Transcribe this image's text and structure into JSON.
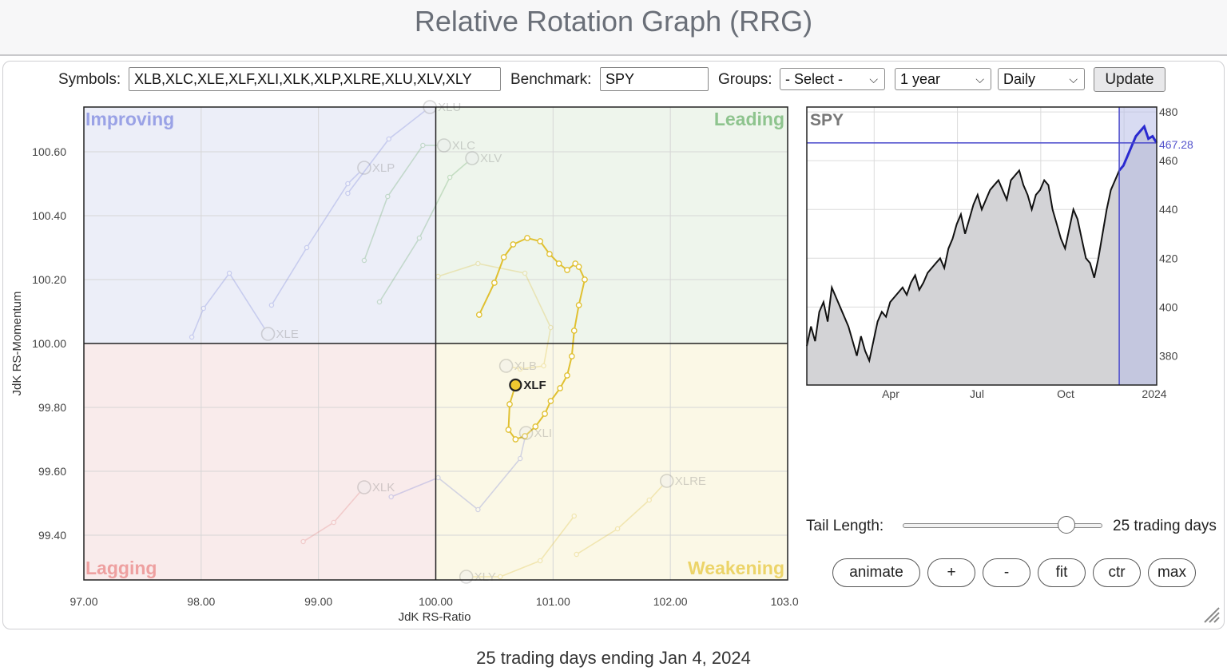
{
  "header": {
    "title": "Relative Rotation Graph (RRG)"
  },
  "controls": {
    "symbols_label": "Symbols:",
    "symbols_value": "XLB,XLC,XLE,XLF,XLI,XLK,XLP,XLRE,XLU,XLV,XLY",
    "benchmark_label": "Benchmark:",
    "benchmark_value": "SPY",
    "groups_label": "Groups:",
    "groups_value": "- Select -",
    "period_value": "1 year",
    "frequency_value": "Daily",
    "update_label": "Update"
  },
  "tail": {
    "label": "Tail Length:",
    "value_text": "25 trading days",
    "fraction": 0.82
  },
  "buttons": {
    "animate": "animate",
    "plus": "+",
    "minus": "-",
    "fit": "fit",
    "ctr": "ctr",
    "max": "max"
  },
  "footer": {
    "text": "25 trading days ending Jan 4, 2024"
  },
  "colors": {
    "improving": "#6b76d6",
    "leading": "#5aa05a",
    "weakening": "#d9b92a",
    "lagging": "#e07a7a",
    "highlight": "#e0c030",
    "spy": "#2a2ad0"
  },
  "chart_data": [
    {
      "type": "scatter",
      "title": "",
      "xlabel": "JdK RS-Ratio",
      "ylabel": "JdK RS-Momentum",
      "xlim": [
        97.0,
        103.0
      ],
      "ylim": [
        99.26,
        100.74
      ],
      "xticks": [
        "97.00",
        "98.00",
        "99.00",
        "100.00",
        "101.00",
        "102.00",
        "103.00"
      ],
      "yticks": [
        "99.40",
        "99.60",
        "99.80",
        "100.00",
        "100.20",
        "100.40",
        "100.60"
      ],
      "quadrants": {
        "improving": "Improving",
        "leading": "Leading",
        "weakening": "Weakening",
        "lagging": "Lagging"
      },
      "highlight": "XLF",
      "series": [
        {
          "name": "XLF",
          "highlighted": true,
          "color": "#e0c030",
          "points": [
            [
              100.37,
              100.09
            ],
            [
              100.5,
              100.19
            ],
            [
              100.58,
              100.27
            ],
            [
              100.66,
              100.31
            ],
            [
              100.78,
              100.33
            ],
            [
              100.89,
              100.32
            ],
            [
              100.97,
              100.28
            ],
            [
              101.05,
              100.25
            ],
            [
              101.12,
              100.23
            ],
            [
              101.19,
              100.25
            ],
            [
              101.22,
              100.24
            ],
            [
              101.27,
              100.2
            ],
            [
              101.22,
              100.12
            ],
            [
              101.18,
              100.04
            ],
            [
              101.16,
              99.96
            ],
            [
              101.12,
              99.9
            ],
            [
              101.06,
              99.86
            ],
            [
              100.98,
              99.82
            ],
            [
              100.93,
              99.78
            ],
            [
              100.85,
              99.74
            ],
            [
              100.76,
              99.71
            ],
            [
              100.68,
              99.7
            ],
            [
              100.62,
              99.73
            ],
            [
              100.63,
              99.81
            ],
            [
              100.68,
              99.87
            ]
          ]
        },
        {
          "name": "XLB",
          "color": "#d9b92a",
          "current": [
            100.6,
            99.93
          ],
          "points": [
            [
              100.02,
              100.21
            ],
            [
              100.36,
              100.25
            ],
            [
              100.76,
              100.22
            ],
            [
              100.98,
              100.05
            ],
            [
              100.92,
              99.93
            ],
            [
              100.72,
              99.92
            ],
            [
              100.6,
              99.93
            ]
          ]
        },
        {
          "name": "XLC",
          "color": "#5aa05a",
          "current": [
            100.07,
            100.62
          ],
          "points": [
            [
              99.39,
              100.26
            ],
            [
              99.59,
              100.46
            ],
            [
              99.89,
              100.62
            ],
            [
              100.07,
              100.62
            ]
          ]
        },
        {
          "name": "XLV",
          "color": "#5aa05a",
          "current": [
            100.31,
            100.58
          ],
          "points": [
            [
              99.52,
              100.13
            ],
            [
              99.86,
              100.33
            ],
            [
              100.12,
              100.52
            ],
            [
              100.31,
              100.58
            ]
          ]
        },
        {
          "name": "XLE",
          "color": "#6b76d6",
          "current": [
            98.57,
            100.03
          ],
          "points": [
            [
              97.92,
              100.02
            ],
            [
              98.02,
              100.11
            ],
            [
              98.24,
              100.22
            ],
            [
              98.57,
              100.03
            ]
          ]
        },
        {
          "name": "XLI",
          "color": "#6b76d6",
          "current": [
            100.77,
            99.72
          ],
          "points": [
            [
              99.62,
              99.52
            ],
            [
              100.02,
              99.58
            ],
            [
              100.36,
              99.48
            ],
            [
              100.72,
              99.64
            ],
            [
              100.77,
              99.72
            ]
          ]
        },
        {
          "name": "XLP",
          "color": "#6b76d6",
          "current": [
            99.39,
            100.55
          ],
          "points": [
            [
              98.6,
              100.12
            ],
            [
              98.9,
              100.3
            ],
            [
              99.25,
              100.5
            ],
            [
              99.39,
              100.55
            ]
          ]
        },
        {
          "name": "XLK",
          "color": "#e07a7a",
          "current": [
            99.39,
            99.55
          ],
          "points": [
            [
              98.87,
              99.38
            ],
            [
              99.13,
              99.44
            ],
            [
              99.39,
              99.55
            ]
          ]
        },
        {
          "name": "XLRE",
          "color": "#d9b92a",
          "current": [
            101.97,
            99.57
          ],
          "points": [
            [
              101.2,
              99.34
            ],
            [
              101.55,
              99.42
            ],
            [
              101.82,
              99.51
            ],
            [
              101.97,
              99.57
            ]
          ]
        },
        {
          "name": "XLU",
          "color": "#6b76d6",
          "current": [
            99.95,
            100.74
          ],
          "points": [
            [
              99.25,
              100.47
            ],
            [
              99.6,
              100.64
            ],
            [
              99.95,
              100.74
            ]
          ]
        },
        {
          "name": "XLY",
          "color": "#d9b92a",
          "current": [
            100.26,
            99.27
          ],
          "points": [
            [
              101.18,
              99.46
            ],
            [
              100.89,
              99.32
            ],
            [
              100.55,
              99.27
            ],
            [
              100.26,
              99.27
            ]
          ]
        }
      ]
    },
    {
      "type": "area",
      "title": "SPY",
      "xticks": [
        "Apr",
        "Jul",
        "Oct",
        "2024"
      ],
      "yticks": [
        "380",
        "400",
        "420",
        "440",
        "460",
        "480"
      ],
      "ylim": [
        368,
        482
      ],
      "current_value_label": "467.28",
      "current_value": 467.28,
      "highlight_start_fraction": 0.9,
      "values": [
        384,
        392,
        386,
        398,
        402,
        394,
        408,
        404,
        400,
        396,
        392,
        386,
        380,
        388,
        382,
        378,
        386,
        394,
        398,
        396,
        402,
        404,
        406,
        408,
        405,
        410,
        413,
        407,
        410,
        414,
        416,
        418,
        420,
        416,
        424,
        428,
        434,
        438,
        430,
        436,
        442,
        446,
        440,
        444,
        448,
        450,
        452,
        448,
        444,
        452,
        454,
        456,
        450,
        446,
        440,
        446,
        448,
        452,
        450,
        440,
        434,
        428,
        424,
        432,
        440,
        436,
        428,
        420,
        418,
        412,
        420,
        430,
        440,
        448,
        452,
        456,
        458,
        462,
        466,
        470,
        472,
        474,
        469,
        470,
        467.28
      ]
    }
  ]
}
